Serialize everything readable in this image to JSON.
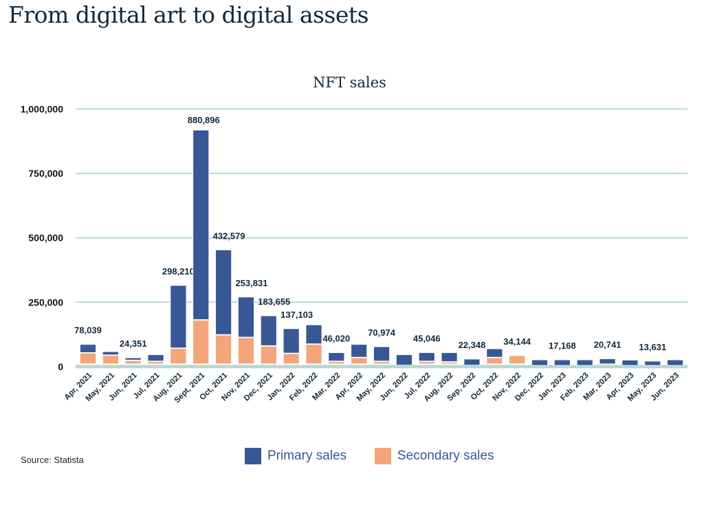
{
  "header": {
    "title": "From digital art to digital assets"
  },
  "footer": {
    "source": "Source: Statista"
  },
  "chart_data": {
    "type": "bar",
    "stacked": true,
    "title": "NFT sales",
    "xlabel": "",
    "ylabel": "",
    "ylim": [
      0,
      1000000
    ],
    "yticks": [
      0,
      250000,
      500000,
      750000,
      1000000
    ],
    "ytick_labels": [
      "0",
      "250,000",
      "500,000",
      "750,000",
      "1,000,000"
    ],
    "grid": true,
    "legend": "bottom",
    "colors": {
      "primary": "#375895",
      "secondary": "#f4a57a",
      "grid": "#b9d8d3",
      "text": "#12283a"
    },
    "categories": [
      "Apr, 2021",
      "May, 2021",
      "Jun, 2021",
      "Jul, 2021",
      "Aug, 2021",
      "Sept, 2021",
      "Oct, 2021",
      "Nov, 2021",
      "Dec, 2021",
      "Jan, 2022",
      "Feb, 2022",
      "Mar, 2022",
      "Apr, 2022",
      "May, 2022",
      "Jun, 2022",
      "Jul, 2022",
      "Aug, 2022",
      "Sep, 2022",
      "Oct, 2022",
      "Nov, 2022",
      "Dec, 2022",
      "Jan, 2023",
      "Feb, 2023",
      "Mar, 2023",
      "Apr, 2023",
      "May, 2023",
      "Jun, 2023"
    ],
    "series": [
      {
        "name": "Secondary sales",
        "values": [
          52000,
          43000,
          23000,
          19000,
          70000,
          180000,
          122000,
          112000,
          79000,
          50000,
          86000,
          19000,
          34000,
          19000,
          3000,
          19000,
          17000,
          3000,
          34000,
          42000,
          2000,
          2000,
          2000,
          8000,
          2000,
          2000,
          2000
        ]
      },
      {
        "name": "Primary sales",
        "values": [
          34000,
          15000,
          11000,
          27000,
          245000,
          738000,
          331000,
          158000,
          118000,
          97000,
          76000,
          35000,
          52000,
          58000,
          43000,
          35000,
          37000,
          26000,
          35000,
          0,
          24000,
          24000,
          24000,
          22000,
          23000,
          19000,
          24000
        ]
      }
    ],
    "data_labels": [
      "78,039",
      null,
      "24,351",
      null,
      "298,210",
      "880,896",
      "432,579",
      "253,831",
      "183,655",
      "137,103",
      null,
      "46,020",
      null,
      "70,974",
      null,
      "45,046",
      null,
      "22,348",
      null,
      "34,144",
      null,
      "17,168",
      null,
      "20,741",
      null,
      "13,631",
      null
    ]
  }
}
